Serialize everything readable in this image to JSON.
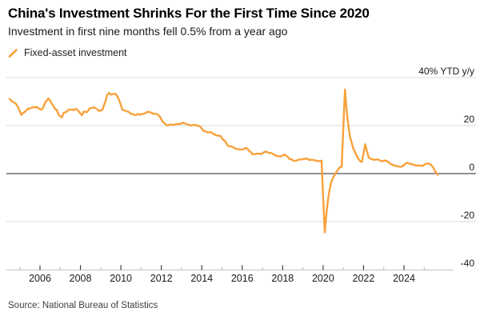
{
  "source_note": "Source: National Bureau of Statistics",
  "colors": {
    "line": "#F8A13A",
    "grid": "#DADADA",
    "zero_line": "#4D4D4D",
    "axis": "#C4C4C4",
    "tick_major": "#404040",
    "tick_minor": "#B5B5B5",
    "text": "#1A1A1A",
    "background": "#FFFFFF"
  },
  "chart_data": {
    "type": "line",
    "title": "China's Investment Shrinks For the First Time Since 2020",
    "subtitle": "Investment in first nine months fell 0.5% from a year ago",
    "unit_label": "40% YTD y/y",
    "ylim": [
      -40,
      40
    ],
    "xlim": [
      2004.3,
      2026.0
    ],
    "grid": "horizontal",
    "legend_position": "top-left",
    "y_ticks": [
      {
        "v": 40,
        "label": "40% YTD y/y"
      },
      {
        "v": 20,
        "label": "20"
      },
      {
        "v": 0,
        "label": "0"
      },
      {
        "v": -20,
        "label": "-20"
      },
      {
        "v": -40,
        "label": "-40"
      }
    ],
    "x_major_ticks": [
      2006,
      2008,
      2010,
      2012,
      2014,
      2016,
      2018,
      2020,
      2022,
      2024
    ],
    "x_minor_ticks": [
      2005,
      2007,
      2009,
      2011,
      2013,
      2015,
      2017,
      2019,
      2021,
      2023,
      2025
    ],
    "series": [
      {
        "name": "Fixed-asset investment",
        "color": "#F8A13A",
        "points": [
          [
            2004.5,
            31.1
          ],
          [
            2004.58,
            30.3
          ],
          [
            2004.67,
            29.9
          ],
          [
            2004.75,
            29.5
          ],
          [
            2004.83,
            28.9
          ],
          [
            2004.92,
            27.6
          ],
          [
            2005.08,
            24.5
          ],
          [
            2005.17,
            25.3
          ],
          [
            2005.25,
            25.7
          ],
          [
            2005.33,
            26.4
          ],
          [
            2005.42,
            27.1
          ],
          [
            2005.5,
            27.2
          ],
          [
            2005.58,
            27.4
          ],
          [
            2005.67,
            27.7
          ],
          [
            2005.75,
            27.6
          ],
          [
            2005.83,
            27.8
          ],
          [
            2005.92,
            27.2
          ],
          [
            2006.08,
            26.6
          ],
          [
            2006.17,
            27.7
          ],
          [
            2006.25,
            29.6
          ],
          [
            2006.33,
            30.3
          ],
          [
            2006.42,
            31.3
          ],
          [
            2006.5,
            30.5
          ],
          [
            2006.58,
            29.1
          ],
          [
            2006.67,
            28.2
          ],
          [
            2006.75,
            26.8
          ],
          [
            2006.83,
            26.6
          ],
          [
            2006.92,
            24.5
          ],
          [
            2007.08,
            23.4
          ],
          [
            2007.17,
            25.3
          ],
          [
            2007.25,
            25.5
          ],
          [
            2007.33,
            25.9
          ],
          [
            2007.42,
            26.7
          ],
          [
            2007.5,
            26.6
          ],
          [
            2007.58,
            26.7
          ],
          [
            2007.67,
            26.4
          ],
          [
            2007.75,
            26.9
          ],
          [
            2007.83,
            26.8
          ],
          [
            2007.92,
            25.8
          ],
          [
            2008.08,
            24.3
          ],
          [
            2008.17,
            25.9
          ],
          [
            2008.25,
            25.7
          ],
          [
            2008.33,
            25.6
          ],
          [
            2008.42,
            26.8
          ],
          [
            2008.5,
            27.3
          ],
          [
            2008.58,
            27.4
          ],
          [
            2008.67,
            27.6
          ],
          [
            2008.75,
            27.2
          ],
          [
            2008.83,
            26.8
          ],
          [
            2008.92,
            26.1
          ],
          [
            2009.08,
            26.5
          ],
          [
            2009.17,
            28.6
          ],
          [
            2009.25,
            30.5
          ],
          [
            2009.33,
            32.9
          ],
          [
            2009.42,
            33.6
          ],
          [
            2009.5,
            32.9
          ],
          [
            2009.58,
            33.0
          ],
          [
            2009.67,
            33.3
          ],
          [
            2009.75,
            33.1
          ],
          [
            2009.83,
            32.1
          ],
          [
            2009.92,
            30.5
          ],
          [
            2010.08,
            26.6
          ],
          [
            2010.17,
            26.4
          ],
          [
            2010.25,
            26.1
          ],
          [
            2010.33,
            25.9
          ],
          [
            2010.42,
            25.5
          ],
          [
            2010.5,
            24.9
          ],
          [
            2010.58,
            24.8
          ],
          [
            2010.67,
            24.5
          ],
          [
            2010.75,
            24.4
          ],
          [
            2010.83,
            24.9
          ],
          [
            2010.92,
            24.5
          ],
          [
            2011.08,
            24.9
          ],
          [
            2011.17,
            25.0
          ],
          [
            2011.25,
            25.4
          ],
          [
            2011.33,
            25.8
          ],
          [
            2011.42,
            25.6
          ],
          [
            2011.5,
            25.4
          ],
          [
            2011.58,
            25.0
          ],
          [
            2011.67,
            24.9
          ],
          [
            2011.75,
            24.9
          ],
          [
            2011.83,
            24.5
          ],
          [
            2011.92,
            23.8
          ],
          [
            2012.08,
            21.5
          ],
          [
            2012.17,
            20.9
          ],
          [
            2012.25,
            20.2
          ],
          [
            2012.33,
            20.1
          ],
          [
            2012.42,
            20.4
          ],
          [
            2012.5,
            20.4
          ],
          [
            2012.58,
            20.2
          ],
          [
            2012.67,
            20.5
          ],
          [
            2012.75,
            20.7
          ],
          [
            2012.83,
            20.7
          ],
          [
            2012.92,
            20.6
          ],
          [
            2013.08,
            21.2
          ],
          [
            2013.17,
            20.9
          ],
          [
            2013.25,
            20.6
          ],
          [
            2013.33,
            20.4
          ],
          [
            2013.42,
            20.1
          ],
          [
            2013.5,
            20.1
          ],
          [
            2013.58,
            20.3
          ],
          [
            2013.67,
            20.2
          ],
          [
            2013.75,
            20.1
          ],
          [
            2013.83,
            19.9
          ],
          [
            2013.92,
            19.6
          ],
          [
            2014.08,
            17.9
          ],
          [
            2014.17,
            17.6
          ],
          [
            2014.25,
            17.3
          ],
          [
            2014.33,
            17.2
          ],
          [
            2014.42,
            17.3
          ],
          [
            2014.5,
            17.0
          ],
          [
            2014.58,
            16.5
          ],
          [
            2014.67,
            16.1
          ],
          [
            2014.75,
            15.9
          ],
          [
            2014.83,
            15.8
          ],
          [
            2014.92,
            15.7
          ],
          [
            2015.08,
            13.9
          ],
          [
            2015.17,
            13.5
          ],
          [
            2015.25,
            12.0
          ],
          [
            2015.33,
            11.4
          ],
          [
            2015.42,
            11.4
          ],
          [
            2015.5,
            11.2
          ],
          [
            2015.58,
            10.9
          ],
          [
            2015.67,
            10.3
          ],
          [
            2015.75,
            10.2
          ],
          [
            2015.83,
            10.2
          ],
          [
            2015.92,
            10.0
          ],
          [
            2016.08,
            10.2
          ],
          [
            2016.17,
            10.7
          ],
          [
            2016.25,
            10.5
          ],
          [
            2016.33,
            9.6
          ],
          [
            2016.42,
            9.0
          ],
          [
            2016.5,
            8.1
          ],
          [
            2016.58,
            8.1
          ],
          [
            2016.67,
            8.2
          ],
          [
            2016.75,
            8.3
          ],
          [
            2016.83,
            8.3
          ],
          [
            2016.92,
            8.1
          ],
          [
            2017.08,
            8.9
          ],
          [
            2017.17,
            9.2
          ],
          [
            2017.25,
            8.9
          ],
          [
            2017.33,
            8.6
          ],
          [
            2017.42,
            8.6
          ],
          [
            2017.5,
            8.3
          ],
          [
            2017.58,
            7.8
          ],
          [
            2017.67,
            7.5
          ],
          [
            2017.75,
            7.3
          ],
          [
            2017.83,
            7.2
          ],
          [
            2017.92,
            7.2
          ],
          [
            2018.08,
            7.9
          ],
          [
            2018.17,
            7.5
          ],
          [
            2018.25,
            7.0
          ],
          [
            2018.33,
            6.1
          ],
          [
            2018.42,
            6.0
          ],
          [
            2018.5,
            5.5
          ],
          [
            2018.58,
            5.3
          ],
          [
            2018.67,
            5.4
          ],
          [
            2018.75,
            5.7
          ],
          [
            2018.83,
            5.9
          ],
          [
            2018.92,
            5.9
          ],
          [
            2019.08,
            6.1
          ],
          [
            2019.17,
            6.3
          ],
          [
            2019.25,
            6.1
          ],
          [
            2019.33,
            5.6
          ],
          [
            2019.42,
            5.8
          ],
          [
            2019.5,
            5.7
          ],
          [
            2019.58,
            5.5
          ],
          [
            2019.67,
            5.4
          ],
          [
            2019.75,
            5.2
          ],
          [
            2019.83,
            5.2
          ],
          [
            2019.92,
            5.4
          ],
          [
            2020.08,
            -24.5
          ],
          [
            2020.17,
            -16.1
          ],
          [
            2020.25,
            -10.3
          ],
          [
            2020.33,
            -6.3
          ],
          [
            2020.42,
            -3.1
          ],
          [
            2020.5,
            -1.6
          ],
          [
            2020.58,
            -0.3
          ],
          [
            2020.67,
            0.8
          ],
          [
            2020.75,
            1.8
          ],
          [
            2020.83,
            2.6
          ],
          [
            2020.92,
            2.9
          ],
          [
            2021.08,
            35.0
          ],
          [
            2021.17,
            25.6
          ],
          [
            2021.25,
            19.9
          ],
          [
            2021.33,
            15.4
          ],
          [
            2021.42,
            12.6
          ],
          [
            2021.5,
            10.3
          ],
          [
            2021.58,
            8.9
          ],
          [
            2021.67,
            7.3
          ],
          [
            2021.75,
            6.1
          ],
          [
            2021.83,
            5.2
          ],
          [
            2021.92,
            4.9
          ],
          [
            2022.08,
            12.2
          ],
          [
            2022.17,
            9.3
          ],
          [
            2022.25,
            6.8
          ],
          [
            2022.33,
            6.2
          ],
          [
            2022.42,
            6.1
          ],
          [
            2022.5,
            5.7
          ],
          [
            2022.58,
            5.8
          ],
          [
            2022.67,
            5.9
          ],
          [
            2022.75,
            5.8
          ],
          [
            2022.83,
            5.3
          ],
          [
            2022.92,
            5.1
          ],
          [
            2023.08,
            5.5
          ],
          [
            2023.17,
            5.1
          ],
          [
            2023.25,
            4.7
          ],
          [
            2023.33,
            4.0
          ],
          [
            2023.42,
            3.8
          ],
          [
            2023.5,
            3.4
          ],
          [
            2023.58,
            3.2
          ],
          [
            2023.67,
            3.1
          ],
          [
            2023.75,
            2.9
          ],
          [
            2023.83,
            2.9
          ],
          [
            2023.92,
            3.0
          ],
          [
            2024.08,
            4.2
          ],
          [
            2024.17,
            4.5
          ],
          [
            2024.25,
            4.2
          ],
          [
            2024.33,
            4.0
          ],
          [
            2024.42,
            3.9
          ],
          [
            2024.5,
            3.6
          ],
          [
            2024.58,
            3.4
          ],
          [
            2024.67,
            3.4
          ],
          [
            2024.75,
            3.4
          ],
          [
            2024.83,
            3.3
          ],
          [
            2024.92,
            3.2
          ],
          [
            2025.08,
            4.1
          ],
          [
            2025.17,
            4.2
          ],
          [
            2025.25,
            4.0
          ],
          [
            2025.33,
            3.7
          ],
          [
            2025.42,
            2.8
          ],
          [
            2025.5,
            1.6
          ],
          [
            2025.58,
            0.5
          ],
          [
            2025.67,
            -0.5
          ]
        ]
      }
    ]
  }
}
